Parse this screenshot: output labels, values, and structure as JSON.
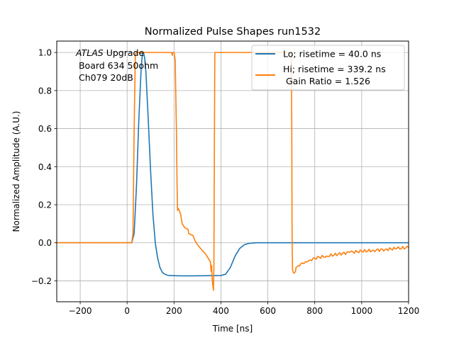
{
  "chart_data": {
    "type": "line",
    "title": "Normalized Pulse Shapes run1532",
    "xlabel": "Time [ns]",
    "ylabel": "Normalized Amplitude (A.U.)",
    "xlim": [
      -300,
      1200
    ],
    "ylim": [
      -0.31,
      1.06
    ],
    "xticks": [
      -200,
      0,
      200,
      400,
      600,
      800,
      1000,
      1200
    ],
    "xtick_labels": [
      "−200",
      "0",
      "200",
      "400",
      "600",
      "800",
      "1000",
      "1200"
    ],
    "yticks": [
      -0.2,
      0.0,
      0.2,
      0.4,
      0.6,
      0.8,
      1.0
    ],
    "ytick_labels": [
      "−0.2",
      "0.0",
      "0.2",
      "0.4",
      "0.6",
      "0.8",
      "1.0"
    ],
    "grid": true,
    "legend_position": "top-right",
    "annotation": {
      "italic": "ATLAS",
      "lines": [
        " Upgrade",
        " Board 634 50ohm",
        " Ch079 20dB"
      ]
    },
    "series": [
      {
        "name": "Lo; risetime = 40.0 ns",
        "color": "#1f77b4",
        "x": [
          -300,
          20,
          30,
          40,
          50,
          60,
          65,
          70,
          75,
          80,
          90,
          100,
          110,
          120,
          130,
          140,
          150,
          160,
          170,
          180,
          200,
          230,
          280,
          350,
          400,
          420,
          440,
          460,
          480,
          500,
          520,
          550,
          600,
          700,
          800,
          1000,
          1200
        ],
        "y": [
          0,
          0,
          0.05,
          0.3,
          0.65,
          0.92,
          0.99,
          1.0,
          0.97,
          0.9,
          0.65,
          0.38,
          0.15,
          0.0,
          -0.08,
          -0.13,
          -0.155,
          -0.165,
          -0.17,
          -0.172,
          -0.173,
          -0.174,
          -0.174,
          -0.173,
          -0.172,
          -0.165,
          -0.13,
          -0.07,
          -0.03,
          -0.01,
          -0.003,
          0,
          0,
          0,
          0,
          0,
          0
        ]
      },
      {
        "name": "Hi; risetime = 339.2 ns\n Gain Ratio = 1.526",
        "color": "#ff7f0e",
        "x": [
          -300,
          20,
          25,
          30,
          35,
          40,
          45,
          190,
          192,
          195,
          200,
          205,
          210,
          213,
          215,
          218,
          222,
          228,
          232,
          235,
          240,
          245,
          260,
          262,
          275,
          280,
          290,
          300,
          320,
          335,
          350,
          355,
          358,
          360,
          362,
          365,
          368,
          370,
          372,
          374,
          376,
          378,
          380,
          382,
          390,
          600,
          690,
          700,
          702,
          703,
          705,
          708,
          712,
          715,
          718,
          720,
          725,
          730,
          740,
          760,
          780,
          800,
          850,
          900,
          950,
          1000,
          1050,
          1100,
          1150,
          1200
        ],
        "y": [
          0,
          0,
          0.05,
          0.6,
          0.99,
          1.0,
          1.0,
          1.0,
          0.985,
          1.0,
          1.0,
          0.96,
          0.6,
          0.3,
          0.17,
          0.18,
          0.17,
          0.15,
          0.12,
          0.1,
          0.09,
          0.08,
          0.07,
          0.05,
          0.04,
          0.04,
          0.01,
          -0.01,
          -0.04,
          -0.06,
          -0.09,
          -0.1,
          -0.15,
          -0.12,
          -0.18,
          -0.22,
          -0.25,
          -0.12,
          0.5,
          1.0,
          1.0,
          1.0,
          1.0,
          1.0,
          1.0,
          1.0,
          1.0,
          0.99,
          0.6,
          0.1,
          -0.14,
          -0.155,
          -0.16,
          -0.155,
          -0.15,
          -0.13,
          -0.125,
          -0.12,
          -0.11,
          -0.1,
          -0.09,
          -0.08,
          -0.07,
          -0.06,
          -0.05,
          -0.045,
          -0.04,
          -0.035,
          -0.03,
          -0.025
        ],
        "ripple_from_x": 720
      }
    ]
  }
}
